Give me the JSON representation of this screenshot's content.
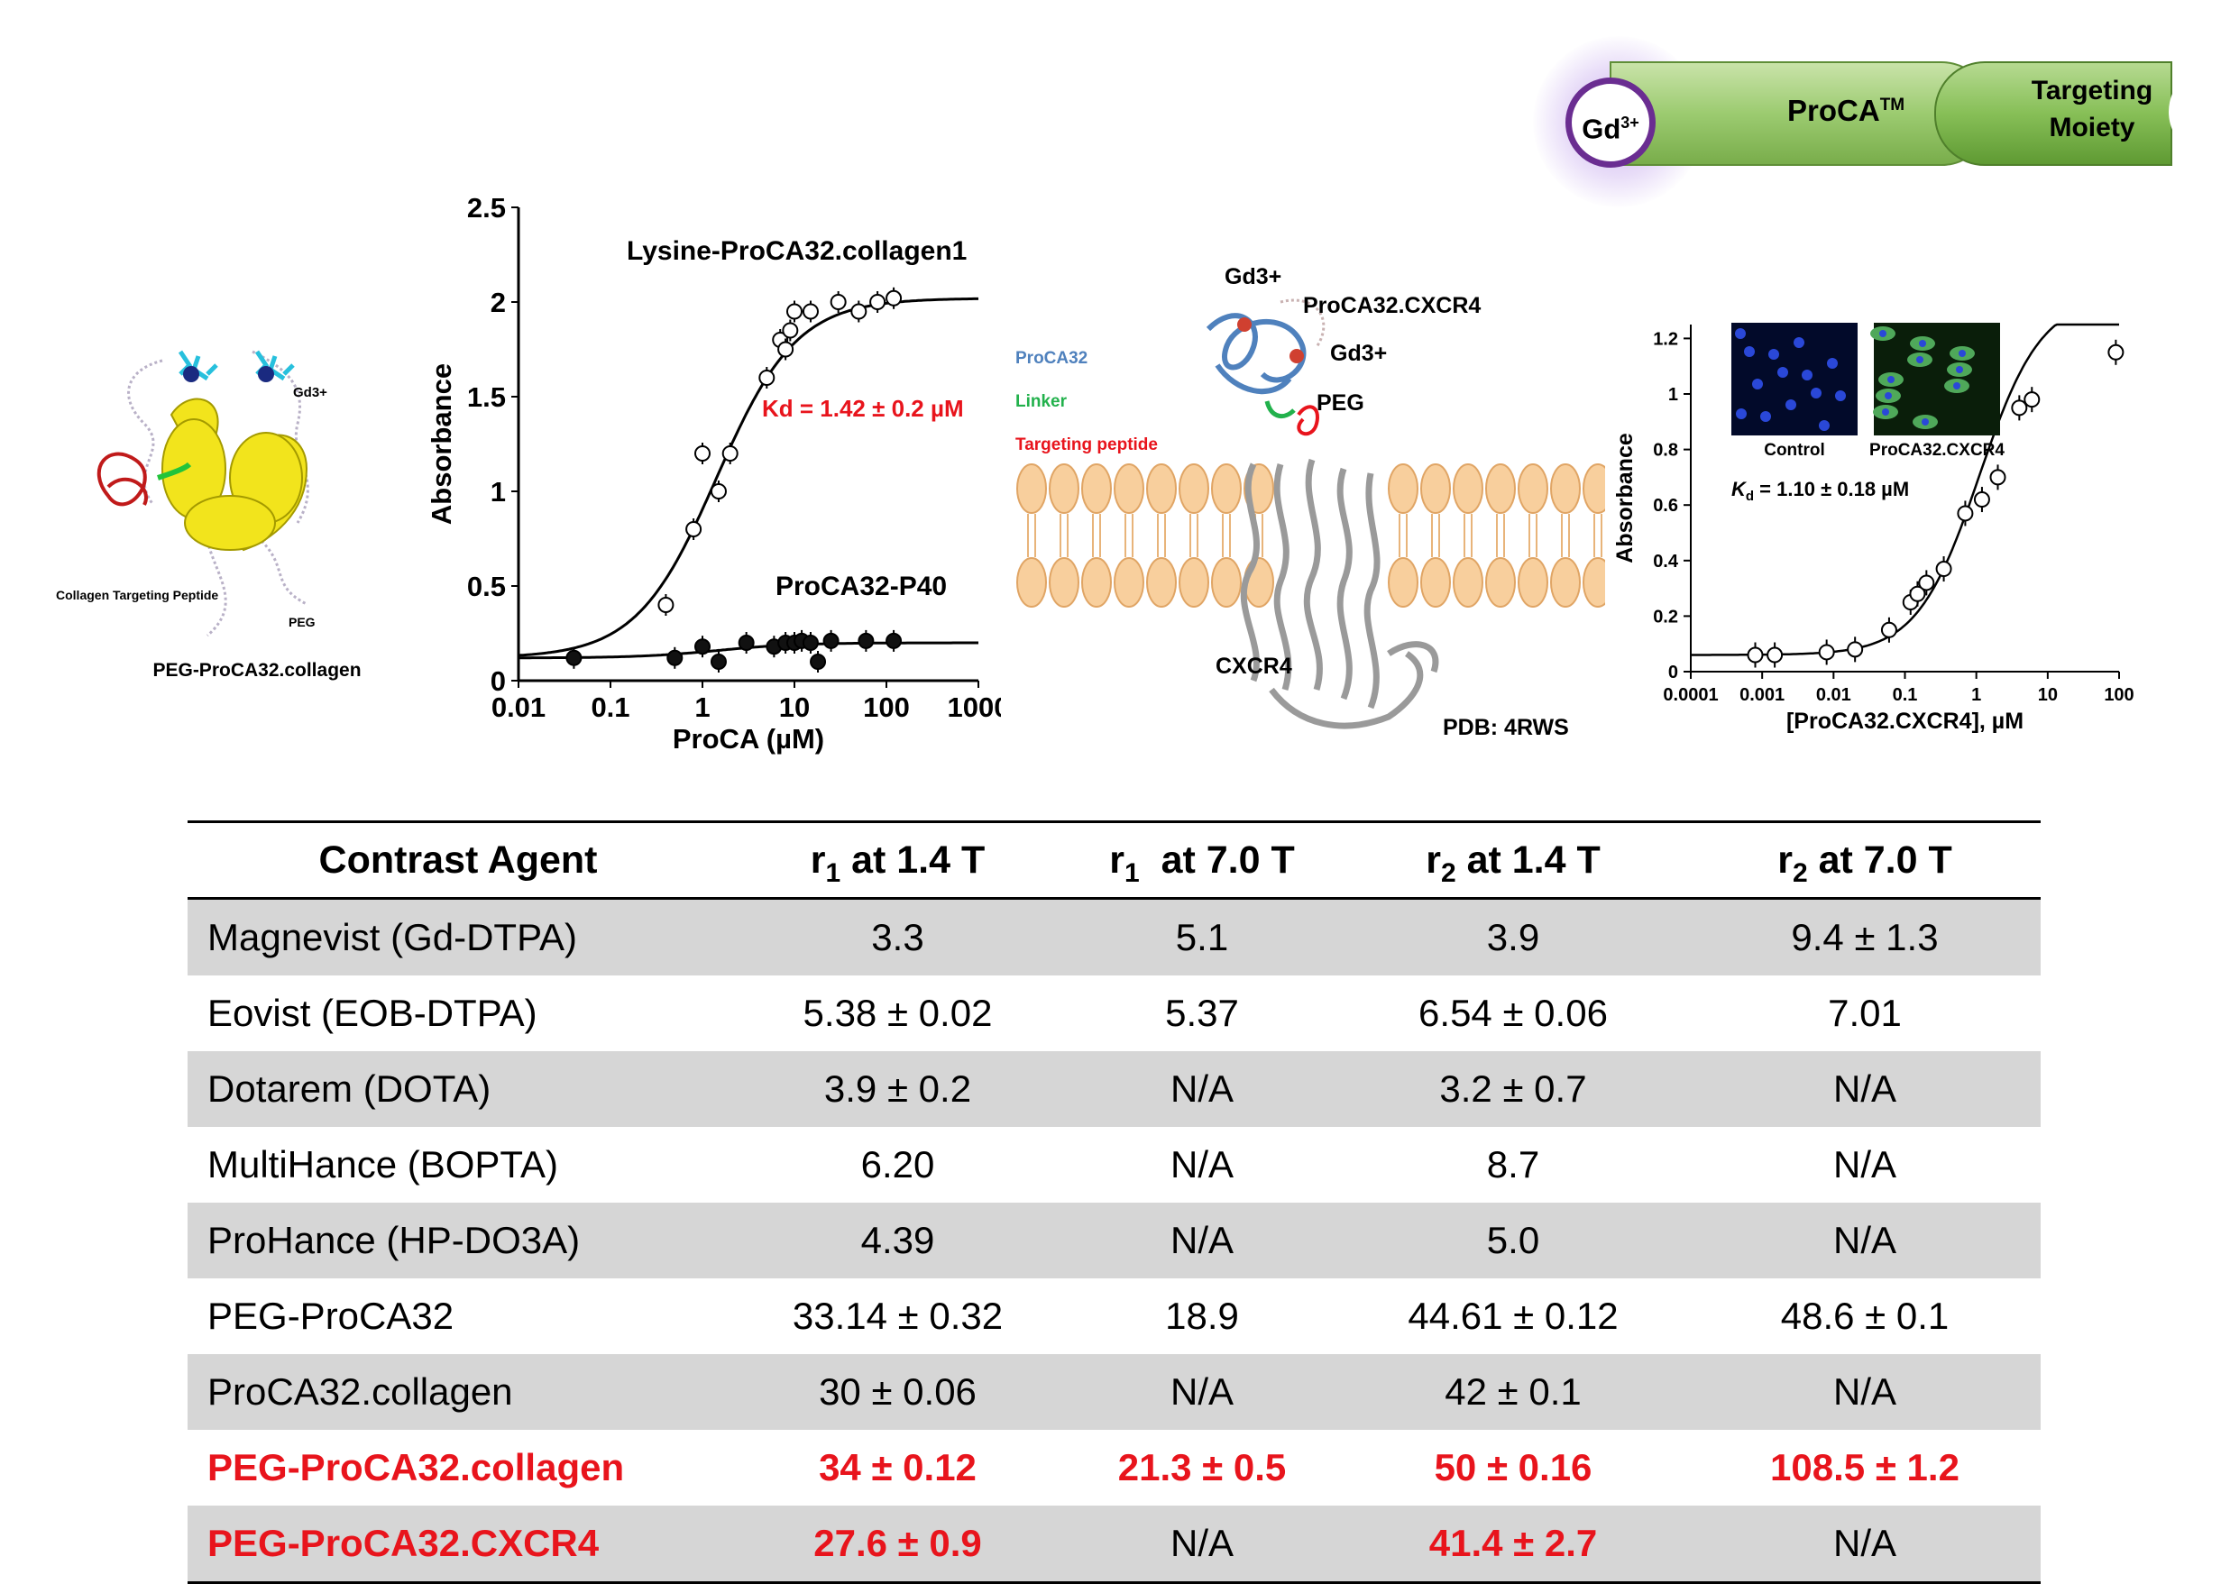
{
  "banner": {
    "gd_label": "Gd",
    "gd_sup": "3+",
    "proca_label": "ProCA",
    "proca_sup": "TM",
    "targeting_line1": "Targeting",
    "targeting_line2": "Moiety",
    "colors": {
      "gd_ring": "#6a2d91",
      "pill_green": "#9ccb70",
      "connector": "#5d8f35"
    }
  },
  "protein_panel": {
    "gd_label": "Gd3+",
    "collagen_label": "Collagen Targeting Peptide",
    "peg_label": "PEG",
    "caption": "PEG-ProCA32.collagen"
  },
  "membrane_panel": {
    "gd_top": "Gd3+",
    "construct_label": "ProCA32.CXCR4",
    "gd_right": "Gd3+",
    "peg_label": "PEG",
    "proca_label": "ProCA32",
    "linker_label": "Linker",
    "targeting_label": "Targeting peptide",
    "receptor_label": "CXCR4",
    "pdb_label": "PDB: 4RWS",
    "colors": {
      "proca": "#4f81bd",
      "linker": "#22b14c",
      "targeting": "#e8141c",
      "lipid": "#f8cf9d"
    }
  },
  "chart_data": [
    {
      "type": "scatter",
      "title": "",
      "xlabel": "ProCA (µM)",
      "ylabel": "Absorbance",
      "xscale": "log",
      "xlim": [
        0.01,
        1000
      ],
      "ylim": [
        0,
        2.5
      ],
      "xticks": [
        "0.01",
        "0.1",
        "1",
        "10",
        "100",
        "1000"
      ],
      "yticks": [
        "0",
        "0.5",
        "1",
        "1.5",
        "2",
        "2.5"
      ],
      "annotation": "Kd = 1.42 ± 0.2 µM",
      "series": [
        {
          "name": "Lysine-ProCA32.collagen1",
          "marker": "open",
          "x": [
            0.4,
            0.8,
            1.0,
            1.5,
            2.0,
            5.0,
            7.0,
            8.0,
            9.0,
            10.0,
            15.0,
            30.0,
            50.0,
            80.0,
            120.0
          ],
          "y": [
            0.4,
            0.8,
            1.2,
            1.0,
            1.2,
            1.6,
            1.8,
            1.75,
            1.85,
            1.95,
            1.95,
            2.0,
            1.95,
            2.0,
            2.02
          ],
          "fit": {
            "bottom": 0.12,
            "top": 2.02,
            "kd": 1.42
          }
        },
        {
          "name": "ProCA32-P40",
          "marker": "filled",
          "x": [
            0.04,
            0.5,
            1.0,
            1.5,
            3.0,
            6.0,
            8.0,
            10.0,
            12.0,
            15.0,
            18.0,
            25.0,
            60.0,
            120.0
          ],
          "y": [
            0.12,
            0.12,
            0.18,
            0.1,
            0.2,
            0.18,
            0.2,
            0.2,
            0.21,
            0.2,
            0.1,
            0.21,
            0.21,
            0.21
          ],
          "fit": {
            "bottom": 0.12,
            "top": 0.2,
            "kd": 1.5
          }
        }
      ]
    },
    {
      "type": "scatter",
      "title": "",
      "xlabel": "[ProCA32.CXCR4], µM",
      "ylabel": "Absorbance",
      "xscale": "log",
      "xlim": [
        0.0001,
        100
      ],
      "ylim": [
        0,
        1.25
      ],
      "xticks": [
        "0.0001",
        "0.001",
        "0.01",
        "0.1",
        "1",
        "10",
        "100"
      ],
      "yticks": [
        "0",
        "0.2",
        "0.4",
        "0.6",
        "0.8",
        "1",
        "1.2"
      ],
      "annotation_k": "K",
      "annotation_sub": "d",
      "annotation_rest": " = 1.10 ± 0.18 µM",
      "inset_labels": [
        "Control",
        "ProCA32.CXCR4"
      ],
      "series": [
        {
          "name": "",
          "marker": "open",
          "x": [
            0.0008,
            0.0015,
            0.008,
            0.02,
            0.06,
            0.12,
            0.15,
            0.2,
            0.35,
            0.7,
            1.2,
            2.0,
            4.0,
            6.0,
            90.0
          ],
          "y": [
            0.06,
            0.06,
            0.07,
            0.08,
            0.15,
            0.25,
            0.28,
            0.32,
            0.37,
            0.57,
            0.62,
            0.7,
            0.95,
            0.98,
            1.15
          ],
          "fit": {
            "bottom": 0.06,
            "top": 1.35,
            "kd": 1.1
          }
        }
      ]
    }
  ],
  "table": {
    "headers": [
      {
        "main": "Contrast Agent",
        "sub": "",
        "tail": ""
      },
      {
        "main": "r",
        "sub": "1",
        "tail": " at 1.4 T"
      },
      {
        "main": "r",
        "sub": "1",
        "tail": "  at 7.0 T"
      },
      {
        "main": "r",
        "sub": "2",
        "tail": " at 1.4 T"
      },
      {
        "main": "r",
        "sub": "2",
        "tail": " at 7.0 T"
      }
    ],
    "rows": [
      {
        "agent": "Magnevist (Gd-DTPA)",
        "r1_14": "3.3",
        "r1_70": "5.1",
        "r2_14": "3.9",
        "r2_70": "9.4 ± 1.3",
        "hl": []
      },
      {
        "agent": "Eovist (EOB-DTPA)",
        "r1_14": "5.38 ± 0.02",
        "r1_70": "5.37",
        "r2_14": "6.54 ± 0.06",
        "r2_70": "7.01",
        "hl": []
      },
      {
        "agent": "Dotarem (DOTA)",
        "r1_14": "3.9 ± 0.2",
        "r1_70": "N/A",
        "r2_14": "3.2 ± 0.7",
        "r2_70": "N/A",
        "hl": []
      },
      {
        "agent": "MultiHance (BOPTA)",
        "r1_14": "6.20",
        "r1_70": "N/A",
        "r2_14": "8.7",
        "r2_70": "N/A",
        "hl": []
      },
      {
        "agent": "ProHance (HP-DO3A)",
        "r1_14": "4.39",
        "r1_70": "N/A",
        "r2_14": "5.0",
        "r2_70": "N/A",
        "hl": []
      },
      {
        "agent": "PEG-ProCA32",
        "r1_14": "33.14 ± 0.32",
        "r1_70": "18.9",
        "r2_14": "44.61 ± 0.12",
        "r2_70": "48.6 ± 0.1",
        "hl": []
      },
      {
        "agent": "ProCA32.collagen",
        "r1_14": "30 ± 0.06",
        "r1_70": "N/A",
        "r2_14": "42 ± 0.1",
        "r2_70": "N/A",
        "hl": []
      },
      {
        "agent": "PEG-ProCA32.collagen",
        "r1_14": "34 ± 0.12",
        "r1_70": "21.3 ± 0.5",
        "r2_14": "50 ± 0.16",
        "r2_70": "108.5 ± 1.2",
        "hl": [
          "agent",
          "r1_14",
          "r1_70",
          "r2_14",
          "r2_70"
        ]
      },
      {
        "agent": "PEG-ProCA32.CXCR4",
        "r1_14": "27.6 ± 0.9",
        "r1_70": "N/A",
        "r2_14": "41.4 ± 2.7",
        "r2_70": "N/A",
        "hl": [
          "agent",
          "r1_14",
          "r2_14"
        ]
      }
    ],
    "highlight_color": "#e8141c"
  }
}
